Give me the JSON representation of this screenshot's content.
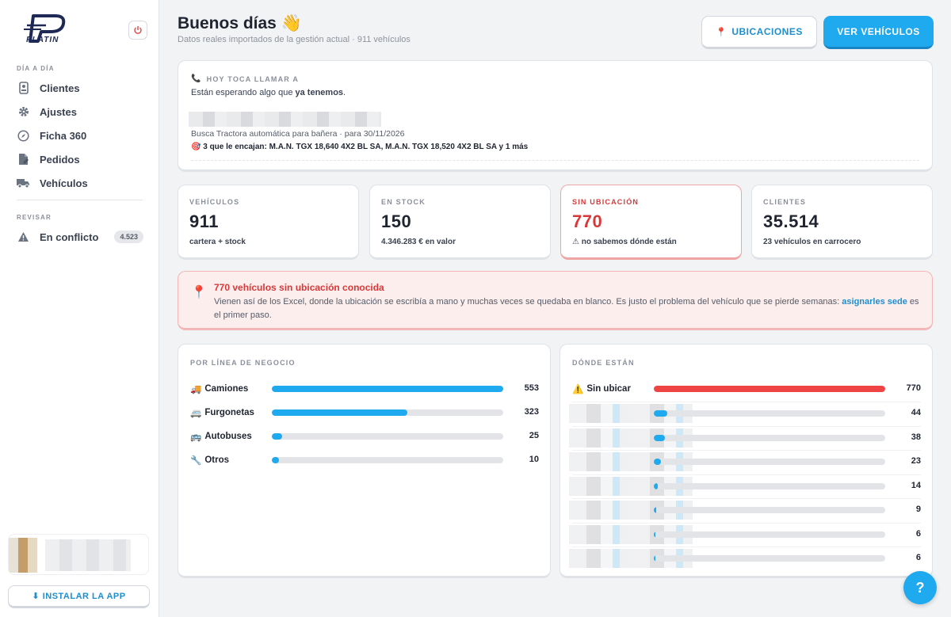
{
  "brand": {
    "name": "PLATIN"
  },
  "sidebar": {
    "section_day": "DÍA A DÍA",
    "items": [
      {
        "label": "Clientes",
        "icon": "clientes-icon"
      },
      {
        "label": "Ajustes",
        "icon": "gear-icon"
      },
      {
        "label": "Ficha 360",
        "icon": "compass-icon"
      },
      {
        "label": "Pedidos",
        "icon": "document-icon"
      },
      {
        "label": "Vehículos",
        "icon": "truck-icon"
      }
    ],
    "section_review": "REVISAR",
    "conflict": {
      "label": "En conflicto",
      "badge": "4.523"
    },
    "install_label": "⬇ INSTALAR LA APP"
  },
  "header": {
    "greeting": "Buenos días 👋",
    "subtitle": "Datos reales importados de la gestión actual · 911 vehículos",
    "btn_locations": "UBICACIONES",
    "btn_vehicles": "VER VEHÍCULOS"
  },
  "call": {
    "caption": "HOY TOCA LLAMAR A",
    "lead_prefix": "Están esperando algo que ",
    "lead_bold": "ya tenemos",
    "lead_suffix": ".",
    "request": "Busca Tractora automática para bañera · para 30/11/2026",
    "matches": "🎯 3 que le encajan: M.A.N. TGX 18,640 4X2 BL SA, M.A.N. TGX 18,520 4X2 BL SA y 1 más"
  },
  "stats": [
    {
      "caption": "VEHÍCULOS",
      "value": "911",
      "sub": "cartera + stock"
    },
    {
      "caption": "EN STOCK",
      "value": "150",
      "sub": "4.346.283 € en valor"
    },
    {
      "caption": "SIN UBICACIÓN",
      "value": "770",
      "sub": "⚠ no sabemos dónde están"
    },
    {
      "caption": "CLIENTES",
      "value": "35.514",
      "sub": "23 vehículos en carrocero"
    }
  ],
  "warning": {
    "title": "770 vehículos sin ubicación conocida",
    "text": "Vienen así de los Excel, donde la ubicación se escribía a mano y muchas veces se quedaba en blanco. Es justo el problema del vehículo que se pierde semanas: ",
    "link": "asignarles sede",
    "suffix": " es el primer paso."
  },
  "business": {
    "caption": "POR LÍNEA DE NEGOCIO",
    "rows": [
      {
        "icon": "🚚",
        "label": "Camiones",
        "value": 553,
        "display": "553"
      },
      {
        "icon": "🚐",
        "label": "Furgonetas",
        "value": 323,
        "display": "323"
      },
      {
        "icon": "🚌",
        "label": "Autobuses",
        "value": 25,
        "display": "25"
      },
      {
        "icon": "🔧",
        "label": "Otros",
        "value": 10,
        "display": "10"
      }
    ],
    "max": 553
  },
  "locations": {
    "caption": "DÓNDE ESTÁN",
    "first": {
      "icon": "⚠️",
      "label": "Sin ubicar",
      "value": 770,
      "display": "770"
    },
    "rows": [
      {
        "value": 44,
        "display": "44"
      },
      {
        "value": 38,
        "display": "38"
      },
      {
        "value": 23,
        "display": "23"
      },
      {
        "value": 14,
        "display": "14"
      },
      {
        "value": 9,
        "display": "9"
      },
      {
        "value": 6,
        "display": "6"
      },
      {
        "value": 6,
        "display": "6"
      }
    ],
    "max": 770
  },
  "help_label": "?",
  "colors": {
    "accent": "#1fa9ee",
    "danger": "#d93838",
    "bar_red": "#ef4444"
  }
}
